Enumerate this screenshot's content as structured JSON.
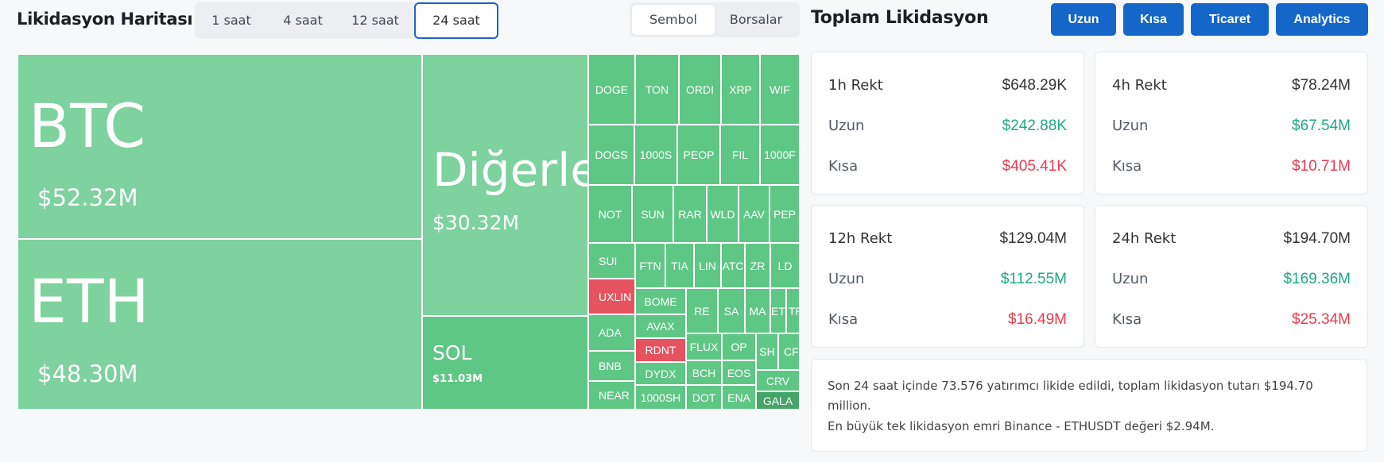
{
  "heatmap": {
    "title": "Likidasyon Haritası",
    "timeframes": [
      "1 saat",
      "4 saat",
      "12 saat",
      "24 saat"
    ],
    "active_timeframe": "24 saat",
    "views": [
      "Sembol",
      "Borsalar"
    ],
    "active_view": "Sembol",
    "tiles": {
      "btc": {
        "symbol": "BTC",
        "value": "$52.32M"
      },
      "eth": {
        "symbol": "ETH",
        "value": "$48.30M"
      },
      "others": {
        "symbol": "Diğerle",
        "value": "$30.32M"
      },
      "sol": {
        "symbol": "SOL",
        "value": "$11.03M"
      },
      "small": [
        "DOGE",
        "TON",
        "ORDI",
        "XRP",
        "WIF",
        "DOGS",
        "1000S",
        "PEOP",
        "FIL",
        "1000F",
        "NOT",
        "SUN",
        "RAR",
        "WLD",
        "AAV",
        "PEP",
        "SUI",
        "FTN",
        "TIA",
        "LIN",
        "ATC",
        "ZR",
        "LD",
        "UXLIN",
        "BOME",
        "RE",
        "SA",
        "MA",
        "ET",
        "TR",
        "ADA",
        "AVAX",
        "BNB",
        "RDNT",
        "FLUX",
        "OP",
        "SH",
        "CF",
        "DYDX",
        "NEAR",
        "BCH",
        "EOS",
        "CRV",
        "1000SH",
        "DOT",
        "ENA",
        "GALA"
      ]
    },
    "colors": {
      "up": "#5fc784",
      "up_light": "#7dd29d",
      "down": "#e5535f",
      "up_dark": "#45a567"
    }
  },
  "total": {
    "title": "Toplam Likidasyon",
    "buttons": [
      "Uzun",
      "Kısa",
      "Ticaret",
      "Analytics"
    ],
    "cards": [
      {
        "head_label": "1h Rekt",
        "head_value": "$648.29K",
        "long_label": "Uzun",
        "long_value": "$242.88K",
        "short_label": "Kısa",
        "short_value": "$405.41K"
      },
      {
        "head_label": "4h Rekt",
        "head_value": "$78.24M",
        "long_label": "Uzun",
        "long_value": "$67.54M",
        "short_label": "Kısa",
        "short_value": "$10.71M"
      },
      {
        "head_label": "12h Rekt",
        "head_value": "$129.04M",
        "long_label": "Uzun",
        "long_value": "$112.55M",
        "short_label": "Kısa",
        "short_value": "$16.49M"
      },
      {
        "head_label": "24h Rekt",
        "head_value": "$194.70M",
        "long_label": "Uzun",
        "long_value": "$169.36M",
        "short_label": "Kısa",
        "short_value": "$25.34M"
      }
    ],
    "summary_line1": "Son 24 saat içinde 73.576 yatırımcı likide edildi, toplam likidasyon tutarı $194.70",
    "summary_line2": "million.",
    "summary_line3": "En büyük tek likidasyon emri Binance - ETHUSDT değeri $2.94M."
  }
}
